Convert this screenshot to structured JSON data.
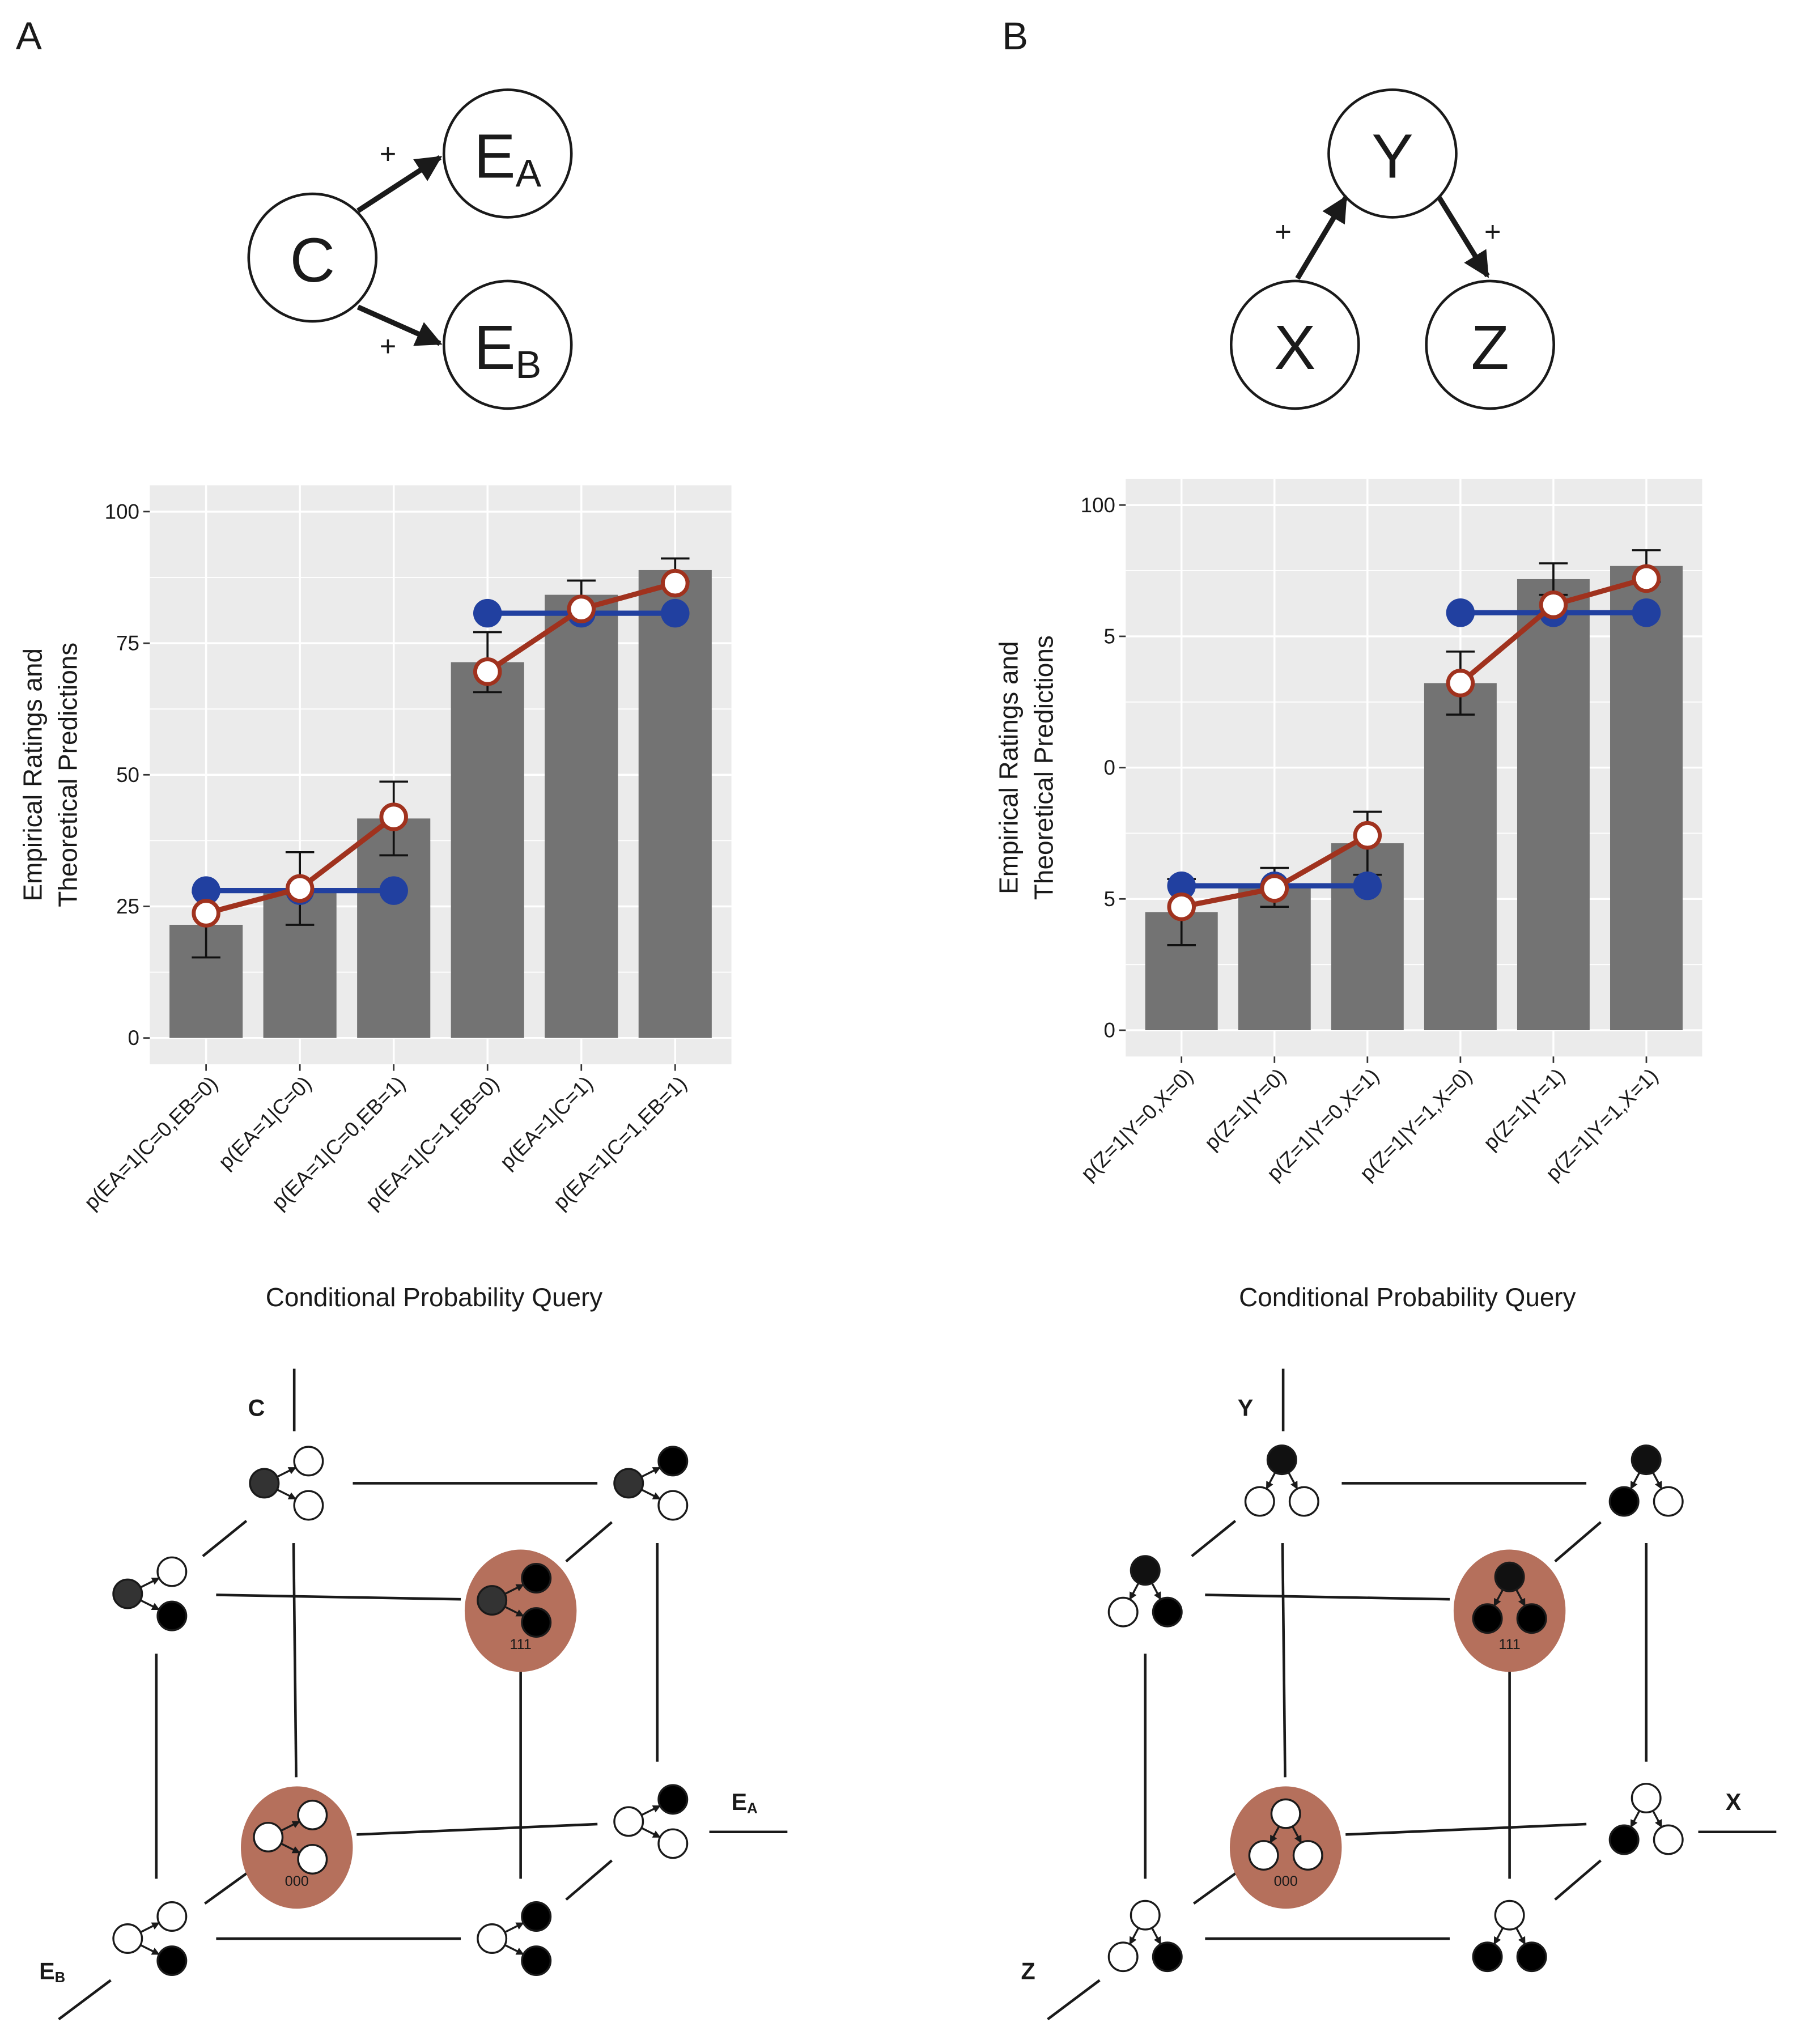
{
  "panels": [
    {
      "letter": "A",
      "network": {
        "nodes": [
          {
            "label": "C"
          },
          {
            "label": "E",
            "sub": "A"
          },
          {
            "label": "E",
            "sub": "B"
          }
        ],
        "signs": [
          "+",
          "+"
        ]
      },
      "cube": {
        "axes": [
          {
            "label": "C"
          },
          {
            "label": "E",
            "sub": "A"
          },
          {
            "label": "E",
            "sub": "B"
          }
        ],
        "states": [
          "111",
          "000"
        ]
      }
    },
    {
      "letter": "B",
      "network": {
        "nodes": [
          {
            "label": "Y"
          },
          {
            "label": "X"
          },
          {
            "label": "Z"
          }
        ],
        "signs": [
          "+",
          "+"
        ]
      },
      "cube": {
        "axes": [
          {
            "label": "Y"
          },
          {
            "label": "X"
          },
          {
            "label": "Z"
          }
        ],
        "states": [
          "111",
          "000"
        ]
      }
    }
  ],
  "chart_data": [
    {
      "type": "bar",
      "categories": [
        "p(EA=1|C=0,EB=0)",
        "p(EA=1|C=0)",
        "p(EA=1|C=0,EB=1)",
        "p(EA=1|C=1,EB=0)",
        "p(EA=1|C=1)",
        "p(EA=1|C=1,EB=1)"
      ],
      "values": [
        21.5,
        28.4,
        41.7,
        71.4,
        84.2,
        88.9
      ],
      "errors": [
        6.2,
        6.9,
        7,
        5.7,
        2.7,
        2.2
      ],
      "color": "#737373",
      "series": [
        {
          "color": "#2140a0",
          "marker": "filled",
          "values": [
            28,
            28,
            28,
            80.7,
            80.7,
            80.7
          ]
        },
        {
          "color": "#a0321e",
          "marker": "open",
          "values": [
            23.7,
            28.4,
            42,
            69.6,
            81.5,
            86.4
          ]
        }
      ],
      "ylim": [
        -5,
        105
      ],
      "yticks": [
        0,
        25,
        50,
        75,
        100
      ],
      "grid": true,
      "x_label": "Conditional Probability Query",
      "y_label": [
        "Empirical Ratings and",
        "Theoretical Predictions"
      ]
    },
    {
      "type": "bar",
      "categories": [
        "p(Z=1|Y=0,X=0)",
        "p(Z=1|Y=0)",
        "p(Z=1|Y=0,X=1)",
        "p(Z=1|Y=1,X=0)",
        "p(Z=1|Y=1)",
        "p(Z=1|Y=1,X=1)"
      ],
      "values": [
        22.5,
        27.2,
        35.6,
        66.1,
        85.9,
        88.4
      ],
      "errors": [
        6.3,
        3.7,
        6,
        6,
        3,
        3
      ],
      "color": "#737373",
      "series": [
        {
          "color": "#2140a0",
          "marker": "filled",
          "values": [
            27.5,
            27.5,
            27.5,
            79.5,
            79.5,
            79.5
          ]
        },
        {
          "color": "#a0321e",
          "marker": "open",
          "values": [
            23.5,
            27,
            37.1,
            66.1,
            81,
            86
          ]
        }
      ],
      "ylim": [
        -5,
        105
      ],
      "yticks": [
        0,
        {
          "value": 25,
          "label": "5"
        },
        {
          "value": 50,
          "label": "0"
        },
        {
          "value": 75,
          "label": "5"
        },
        100
      ],
      "grid": true,
      "x_label": "Conditional Probability Query",
      "y_label": [
        "Empirical Ratings and",
        "Theoretical Predictions"
      ]
    }
  ]
}
